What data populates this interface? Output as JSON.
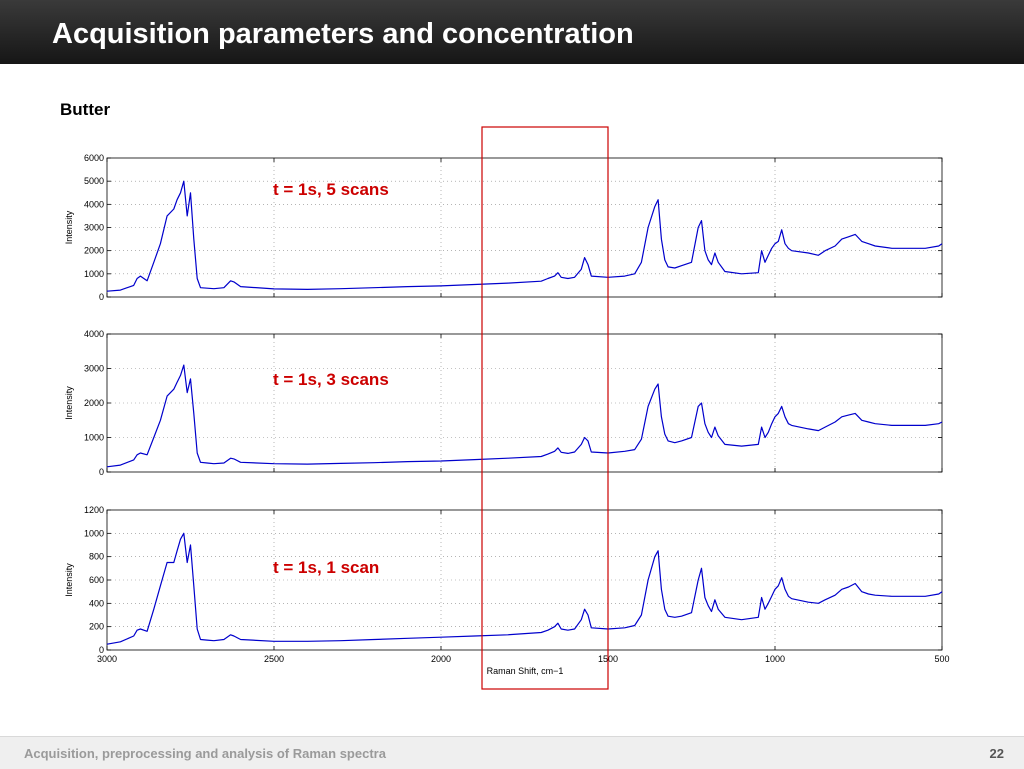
{
  "slide": {
    "title": "Acquisition parameters and concentration",
    "subtitle": "Butter",
    "footer": "Acquisition, preprocessing and analysis of Raman spectra",
    "page_number": "22",
    "highlight_color": "#cc0000",
    "spectrum_color": "#0000cc"
  },
  "chart_data": [
    {
      "type": "line",
      "annotation": "t = 1s, 5 scans",
      "ylabel": "Intensity",
      "xlabel": "",
      "xlim": [
        3000,
        500
      ],
      "ylim": [
        0,
        6000
      ],
      "yticks": [
        "0",
        "1000",
        "2000",
        "3000",
        "4000",
        "5000",
        "6000"
      ],
      "xticks": [],
      "grid": true,
      "series": [
        {
          "x": [
            3000,
            2960,
            2920,
            2910,
            2900,
            2880,
            2860,
            2840,
            2820,
            2800,
            2790,
            2780,
            2770,
            2760,
            2750,
            2740,
            2730,
            2720,
            2700,
            2680,
            2650,
            2630,
            2620,
            2600,
            2500,
            2400,
            2300,
            2200,
            2100,
            2000,
            1900,
            1800,
            1700,
            1680,
            1660,
            1650,
            1640,
            1620,
            1600,
            1580,
            1570,
            1560,
            1550,
            1500,
            1450,
            1420,
            1400,
            1380,
            1360,
            1350,
            1340,
            1330,
            1320,
            1300,
            1280,
            1250,
            1230,
            1220,
            1210,
            1200,
            1190,
            1180,
            1170,
            1150,
            1100,
            1050,
            1040,
            1030,
            1020,
            1010,
            1000,
            990,
            980,
            970,
            960,
            950,
            900,
            870,
            850,
            820,
            800,
            780,
            760,
            740,
            720,
            700,
            650,
            600,
            550,
            510,
            500
          ],
          "y": [
            250,
            300,
            500,
            800,
            900,
            700,
            1500,
            2300,
            3500,
            3800,
            4200,
            4500,
            5000,
            3500,
            4500,
            2500,
            800,
            400,
            380,
            360,
            400,
            700,
            650,
            450,
            350,
            330,
            360,
            400,
            450,
            480,
            540,
            600,
            680,
            800,
            900,
            1050,
            850,
            800,
            850,
            1200,
            1700,
            1400,
            900,
            850,
            900,
            1000,
            1500,
            3000,
            3900,
            4200,
            2500,
            1600,
            1300,
            1250,
            1350,
            1500,
            3000,
            3300,
            2000,
            1600,
            1400,
            1900,
            1500,
            1100,
            1000,
            1050,
            2000,
            1500,
            1800,
            2100,
            2300,
            2400,
            2900,
            2300,
            2100,
            2000,
            1900,
            1800,
            2000,
            2200,
            2500,
            2600,
            2700,
            2400,
            2300,
            2200,
            2100,
            2100,
            2100,
            2200,
            2300
          ]
        }
      ]
    },
    {
      "type": "line",
      "annotation": "t = 1s, 3 scans",
      "ylabel": "Intensity",
      "xlabel": "",
      "xlim": [
        3000,
        500
      ],
      "ylim": [
        0,
        4000
      ],
      "yticks": [
        "0",
        "1000",
        "2000",
        "3000",
        "4000"
      ],
      "xticks": [],
      "grid": true,
      "series": [
        {
          "x": [
            3000,
            2960,
            2920,
            2910,
            2900,
            2880,
            2860,
            2840,
            2820,
            2800,
            2790,
            2780,
            2770,
            2760,
            2750,
            2740,
            2730,
            2720,
            2700,
            2680,
            2650,
            2630,
            2620,
            2600,
            2500,
            2400,
            2300,
            2200,
            2100,
            2000,
            1900,
            1800,
            1700,
            1680,
            1660,
            1650,
            1640,
            1620,
            1600,
            1580,
            1570,
            1560,
            1550,
            1500,
            1450,
            1420,
            1400,
            1380,
            1360,
            1350,
            1340,
            1330,
            1320,
            1300,
            1280,
            1250,
            1230,
            1220,
            1210,
            1200,
            1190,
            1180,
            1170,
            1150,
            1100,
            1050,
            1040,
            1030,
            1020,
            1010,
            1000,
            990,
            980,
            970,
            960,
            950,
            900,
            870,
            850,
            820,
            800,
            780,
            760,
            740,
            720,
            700,
            650,
            600,
            550,
            510,
            500
          ],
          "y": [
            150,
            200,
            350,
            500,
            550,
            500,
            1000,
            1500,
            2200,
            2400,
            2600,
            2800,
            3100,
            2300,
            2700,
            1700,
            550,
            280,
            260,
            240,
            260,
            400,
            380,
            280,
            240,
            230,
            250,
            270,
            300,
            320,
            360,
            400,
            450,
            520,
            600,
            700,
            570,
            540,
            580,
            800,
            1000,
            900,
            580,
            550,
            600,
            650,
            950,
            1900,
            2400,
            2550,
            1600,
            1100,
            900,
            850,
            900,
            1000,
            1900,
            2000,
            1400,
            1150,
            1000,
            1300,
            1050,
            800,
            750,
            800,
            1300,
            1000,
            1150,
            1400,
            1600,
            1700,
            1900,
            1600,
            1400,
            1350,
            1250,
            1200,
            1300,
            1450,
            1600,
            1650,
            1700,
            1500,
            1450,
            1400,
            1350,
            1350,
            1350,
            1400,
            1450
          ]
        }
      ]
    },
    {
      "type": "line",
      "annotation": "t = 1s, 1 scan",
      "ylabel": "Intensity",
      "xlabel": "Raman Shift, cm−1",
      "xlim": [
        3000,
        500
      ],
      "ylim": [
        0,
        1200
      ],
      "yticks": [
        "0",
        "200",
        "400",
        "600",
        "800",
        "1000",
        "1200"
      ],
      "xticks": [
        "3000",
        "2500",
        "2000",
        "1500",
        "1000",
        "500"
      ],
      "grid": true,
      "series": [
        {
          "x": [
            3000,
            2960,
            2920,
            2910,
            2900,
            2880,
            2860,
            2840,
            2820,
            2800,
            2790,
            2780,
            2770,
            2760,
            2750,
            2740,
            2730,
            2720,
            2700,
            2680,
            2650,
            2630,
            2620,
            2600,
            2500,
            2400,
            2300,
            2200,
            2100,
            2000,
            1900,
            1800,
            1700,
            1680,
            1660,
            1650,
            1640,
            1620,
            1600,
            1580,
            1570,
            1560,
            1550,
            1500,
            1450,
            1420,
            1400,
            1380,
            1360,
            1350,
            1340,
            1330,
            1320,
            1300,
            1280,
            1250,
            1230,
            1220,
            1210,
            1200,
            1190,
            1180,
            1170,
            1150,
            1100,
            1050,
            1040,
            1030,
            1020,
            1010,
            1000,
            990,
            980,
            970,
            960,
            950,
            900,
            870,
            850,
            820,
            800,
            780,
            760,
            740,
            720,
            700,
            650,
            600,
            550,
            510,
            500
          ],
          "y": [
            50,
            70,
            120,
            170,
            180,
            160,
            350,
            550,
            750,
            750,
            850,
            950,
            1000,
            750,
            900,
            550,
            180,
            90,
            85,
            80,
            90,
            130,
            120,
            90,
            75,
            75,
            80,
            90,
            100,
            110,
            120,
            130,
            150,
            170,
            200,
            230,
            180,
            170,
            180,
            260,
            350,
            300,
            190,
            180,
            190,
            210,
            300,
            600,
            800,
            850,
            520,
            350,
            290,
            280,
            290,
            320,
            600,
            700,
            450,
            380,
            330,
            430,
            350,
            280,
            260,
            280,
            450,
            350,
            400,
            460,
            520,
            550,
            620,
            520,
            460,
            440,
            410,
            400,
            430,
            470,
            520,
            540,
            570,
            500,
            480,
            470,
            460,
            460,
            460,
            480,
            500
          ]
        }
      ]
    }
  ]
}
